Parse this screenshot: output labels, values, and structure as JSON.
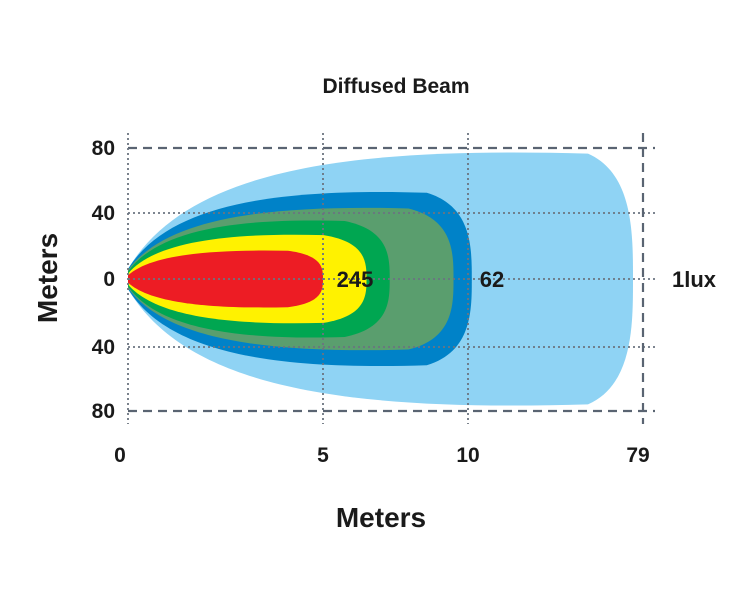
{
  "chart_data": {
    "type": "area",
    "title": "Diffused Beam",
    "xlabel": "Meters",
    "ylabel": "Meters",
    "x_ticks": [
      "0",
      "5",
      "10",
      "79"
    ],
    "y_ticks": [
      "80",
      "40",
      "0",
      "40",
      "80"
    ],
    "contour_labels": [
      "245",
      "62",
      "1lux"
    ],
    "zones": [
      {
        "color": "#8fd3f4",
        "reach": 79,
        "half_width": 80
      },
      {
        "color": "#0082c8",
        "reach": 11.5,
        "half_width": 55
      },
      {
        "color": "#5a9e6e",
        "reach": 9.5,
        "half_width": 45
      },
      {
        "color": "#00a651",
        "reach": 7.3,
        "half_width": 37
      },
      {
        "color": "#fff200",
        "reach": 6.5,
        "half_width": 28
      },
      {
        "color": "#ed1c24",
        "reach": 5.0,
        "half_width": 18
      }
    ]
  }
}
